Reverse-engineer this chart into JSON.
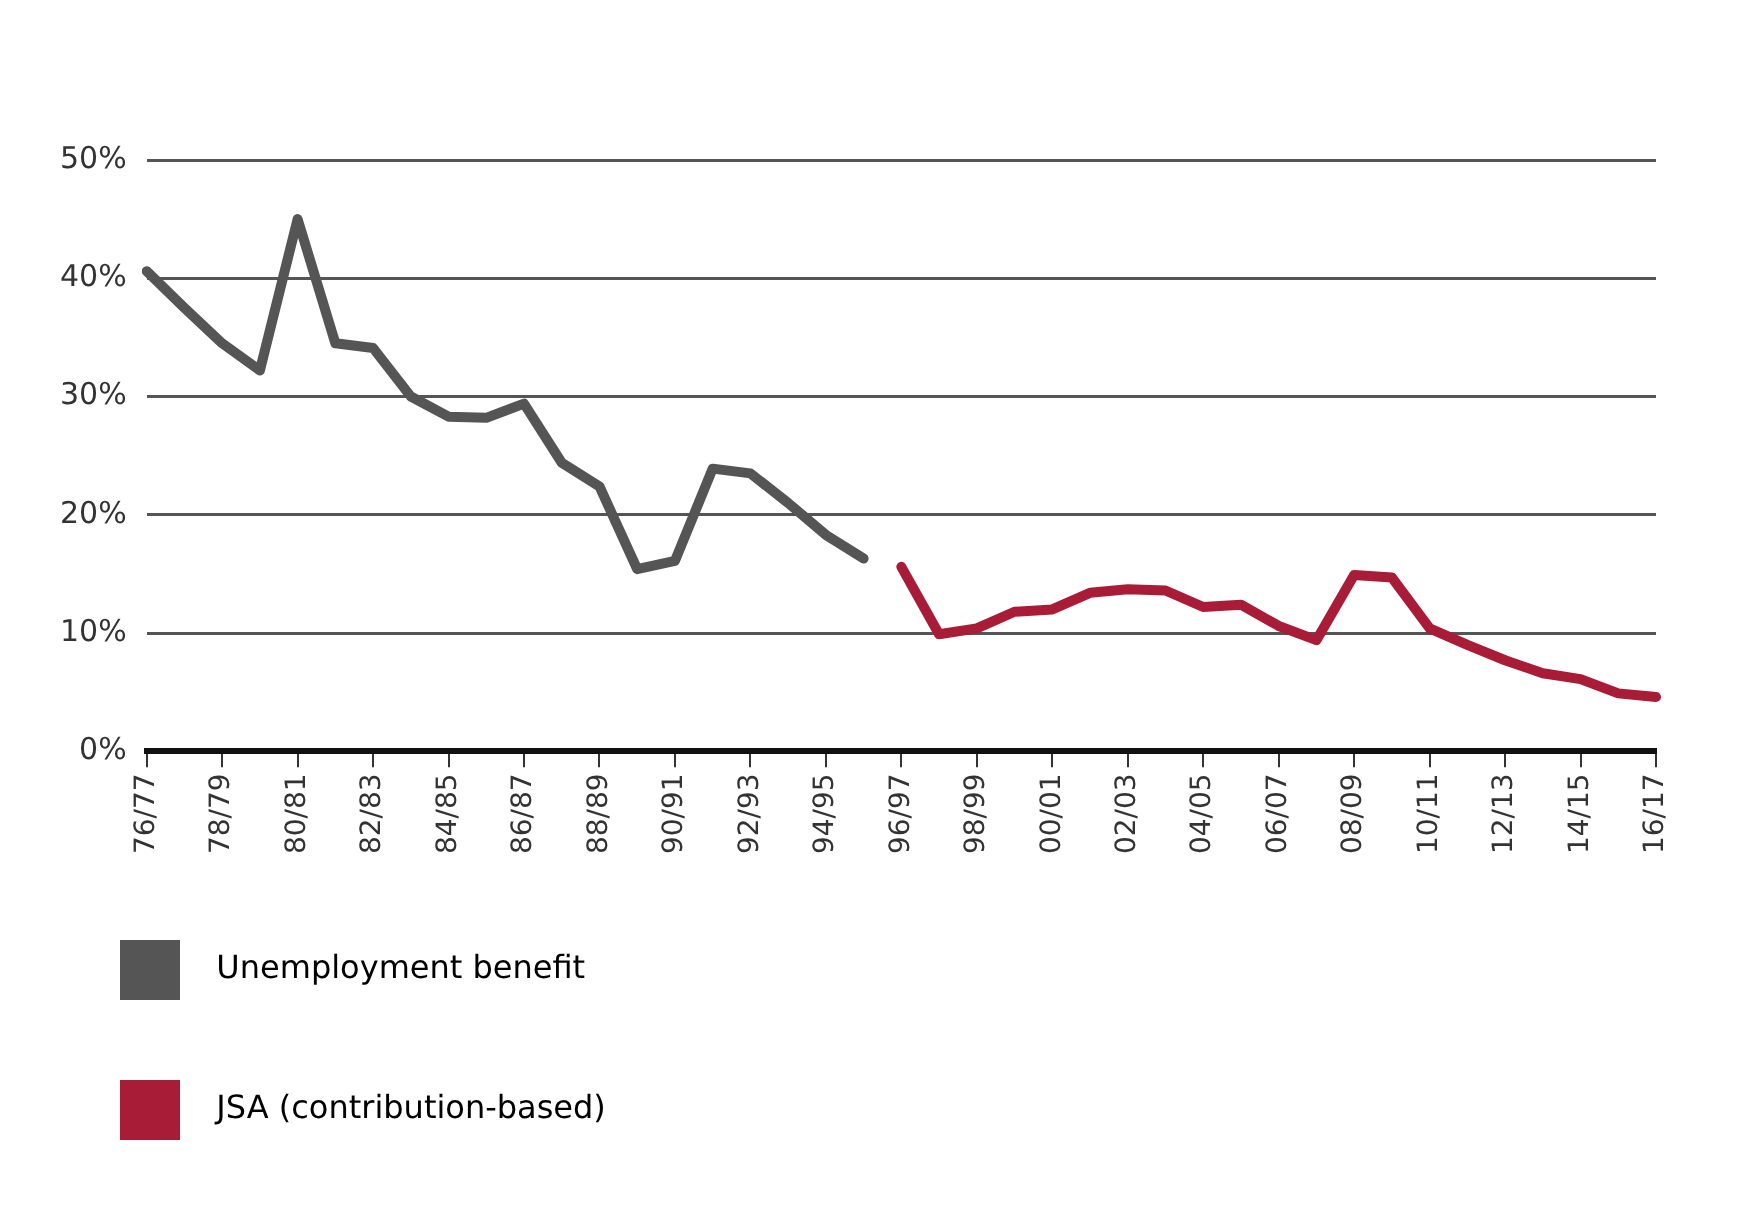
{
  "chart_data": {
    "type": "line",
    "categories": [
      "76/77",
      null,
      "78/79",
      null,
      "80/81",
      null,
      "82/83",
      null,
      "84/85",
      null,
      "86/87",
      null,
      "88/89",
      null,
      "90/91",
      null,
      "92/93",
      null,
      "94/95",
      null,
      "96/97",
      null,
      "98/99",
      null,
      "00/01",
      null,
      "02/03",
      null,
      "04/05",
      null,
      "06/07",
      null,
      "08/09",
      null,
      "10/11",
      null,
      "12/13",
      null,
      "14/15",
      null,
      "16/17"
    ],
    "series": [
      {
        "name": "Unemployment benefit",
        "color": "#555555",
        "values": [
          40.6,
          37.5,
          34.5,
          32.2,
          45.0,
          34.5,
          34.1,
          30.0,
          28.3,
          28.2,
          29.4,
          24.4,
          22.4,
          15.4,
          16.1,
          23.9,
          23.5,
          21.0,
          18.3,
          16.3,
          null,
          null,
          null,
          null,
          null,
          null,
          null,
          null,
          null,
          null,
          null,
          null,
          null,
          null,
          null,
          null,
          null,
          null,
          null,
          null,
          null
        ]
      },
      {
        "name": "JSA (contribution-based)",
        "color": "#a81c38",
        "values": [
          null,
          null,
          null,
          null,
          null,
          null,
          null,
          null,
          null,
          null,
          null,
          null,
          null,
          null,
          null,
          null,
          null,
          null,
          null,
          null,
          15.6,
          9.9,
          10.4,
          11.8,
          12.0,
          13.4,
          13.7,
          13.6,
          12.2,
          12.4,
          10.6,
          9.4,
          14.9,
          14.7,
          10.4,
          9.0,
          7.7,
          6.6,
          6.1,
          4.9,
          4.6
        ]
      }
    ],
    "ylim": [
      0,
      50
    ],
    "yticks": [
      {
        "value": 0,
        "label": "0%"
      },
      {
        "value": 10,
        "label": "10%"
      },
      {
        "value": 20,
        "label": "20%"
      },
      {
        "value": 30,
        "label": "30%"
      },
      {
        "value": 40,
        "label": "40%"
      },
      {
        "value": 50,
        "label": "50%"
      }
    ],
    "grid": "y",
    "legend": "bottom",
    "marker": "none",
    "line_style": "solid"
  }
}
